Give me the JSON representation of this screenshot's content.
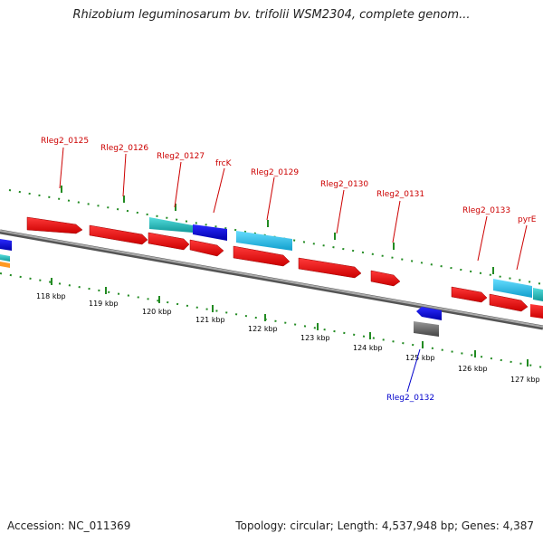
{
  "title": "Rhizobium leguminosarum bv. trifolii WSM2304, complete genom...",
  "footer": {
    "accession": "Accession: NC_011369",
    "summary": "Topology: circular; Length: 4,537,948 bp; Genes: 4,387"
  },
  "colors": {
    "gene_red": "#ee1111",
    "gene_blue": "#1111dd",
    "gene_cyan": "#22bbdd",
    "gene_teal": "#22bbbb",
    "gene_gray": "#666666",
    "gene_orange": "#ff9922",
    "backbone": "#808080",
    "tick_green": "#228b22",
    "label_red": "#cc0000",
    "label_blue": "#0000cc"
  },
  "scale_labels": [
    "118 kbp",
    "119 kbp",
    "120 kbp",
    "121 kbp",
    "122 kbp",
    "123 kbp",
    "124 kbp",
    "125 kbp",
    "126 kbp",
    "127 kbp"
  ],
  "gene_labels": {
    "top": [
      "Rleg2_0125",
      "Rleg2_0126",
      "Rleg2_0127",
      "frcK",
      "Rleg2_0129",
      "Rleg2_0130",
      "Rleg2_0131",
      "Rleg2_0133",
      "pyrE"
    ],
    "bottom": [
      "Rleg2_0132"
    ]
  }
}
